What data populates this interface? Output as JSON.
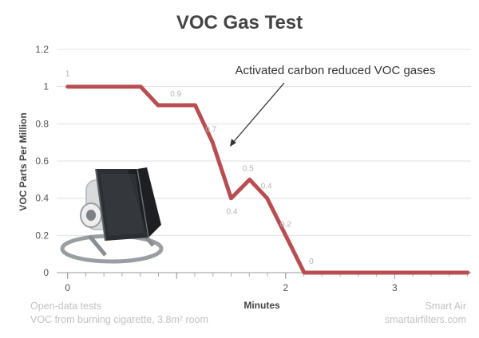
{
  "chart_data": {
    "type": "line",
    "title": "VOC Gas Test",
    "xlabel": "Minutes",
    "ylabel": "VOC Parts Per Million",
    "xlim": [
      -0.1,
      3.7
    ],
    "ylim": [
      0,
      1.2
    ],
    "x_ticks": [
      0,
      1,
      2,
      3
    ],
    "x_tick_labels": [
      "0",
      "",
      "2",
      "3"
    ],
    "y_ticks": [
      0,
      0.2,
      0.4,
      0.6,
      0.8,
      1,
      1.2
    ],
    "y_tick_labels": [
      "0",
      "0.2",
      "0.4",
      "0.6",
      "0.8",
      "1",
      "1.2"
    ],
    "grid": "horizontal",
    "series": [
      {
        "color": "#b84e52",
        "x": [
          0,
          0.67,
          0.83,
          1.0,
          1.17,
          1.33,
          1.5,
          1.67,
          1.83,
          2.0,
          2.17,
          2.33,
          2.5,
          2.67,
          2.83,
          3.0,
          3.17,
          3.33,
          3.5,
          3.67
        ],
        "values": [
          1,
          1,
          0.9,
          0.9,
          0.9,
          0.7,
          0.4,
          0.5,
          0.4,
          0.2,
          0,
          0,
          0,
          0,
          0,
          0,
          0,
          0,
          0,
          0
        ]
      }
    ],
    "data_labels": [
      {
        "x": 0,
        "y": 1,
        "text": "1"
      },
      {
        "x": 1.0,
        "y": 0.9,
        "text": "0.9"
      },
      {
        "x": 1.33,
        "y": 0.7,
        "text": "0.7"
      },
      {
        "x": 1.5,
        "y": 0.4,
        "text": "0.4"
      },
      {
        "x": 1.67,
        "y": 0.5,
        "text": "0.5"
      },
      {
        "x": 1.83,
        "y": 0.4,
        "text": "0.4"
      },
      {
        "x": 2.0,
        "y": 0.2,
        "text": "0.2"
      },
      {
        "x": 2.33,
        "y": 0,
        "text": "0"
      }
    ],
    "annotation": "Activated carbon reduced VOC gases",
    "footer_left": [
      "Open-data tests",
      "VOC from burning cigarette, 3.8m² room"
    ],
    "footer_right": [
      "Smart Air",
      "smartairfilters.com"
    ]
  }
}
